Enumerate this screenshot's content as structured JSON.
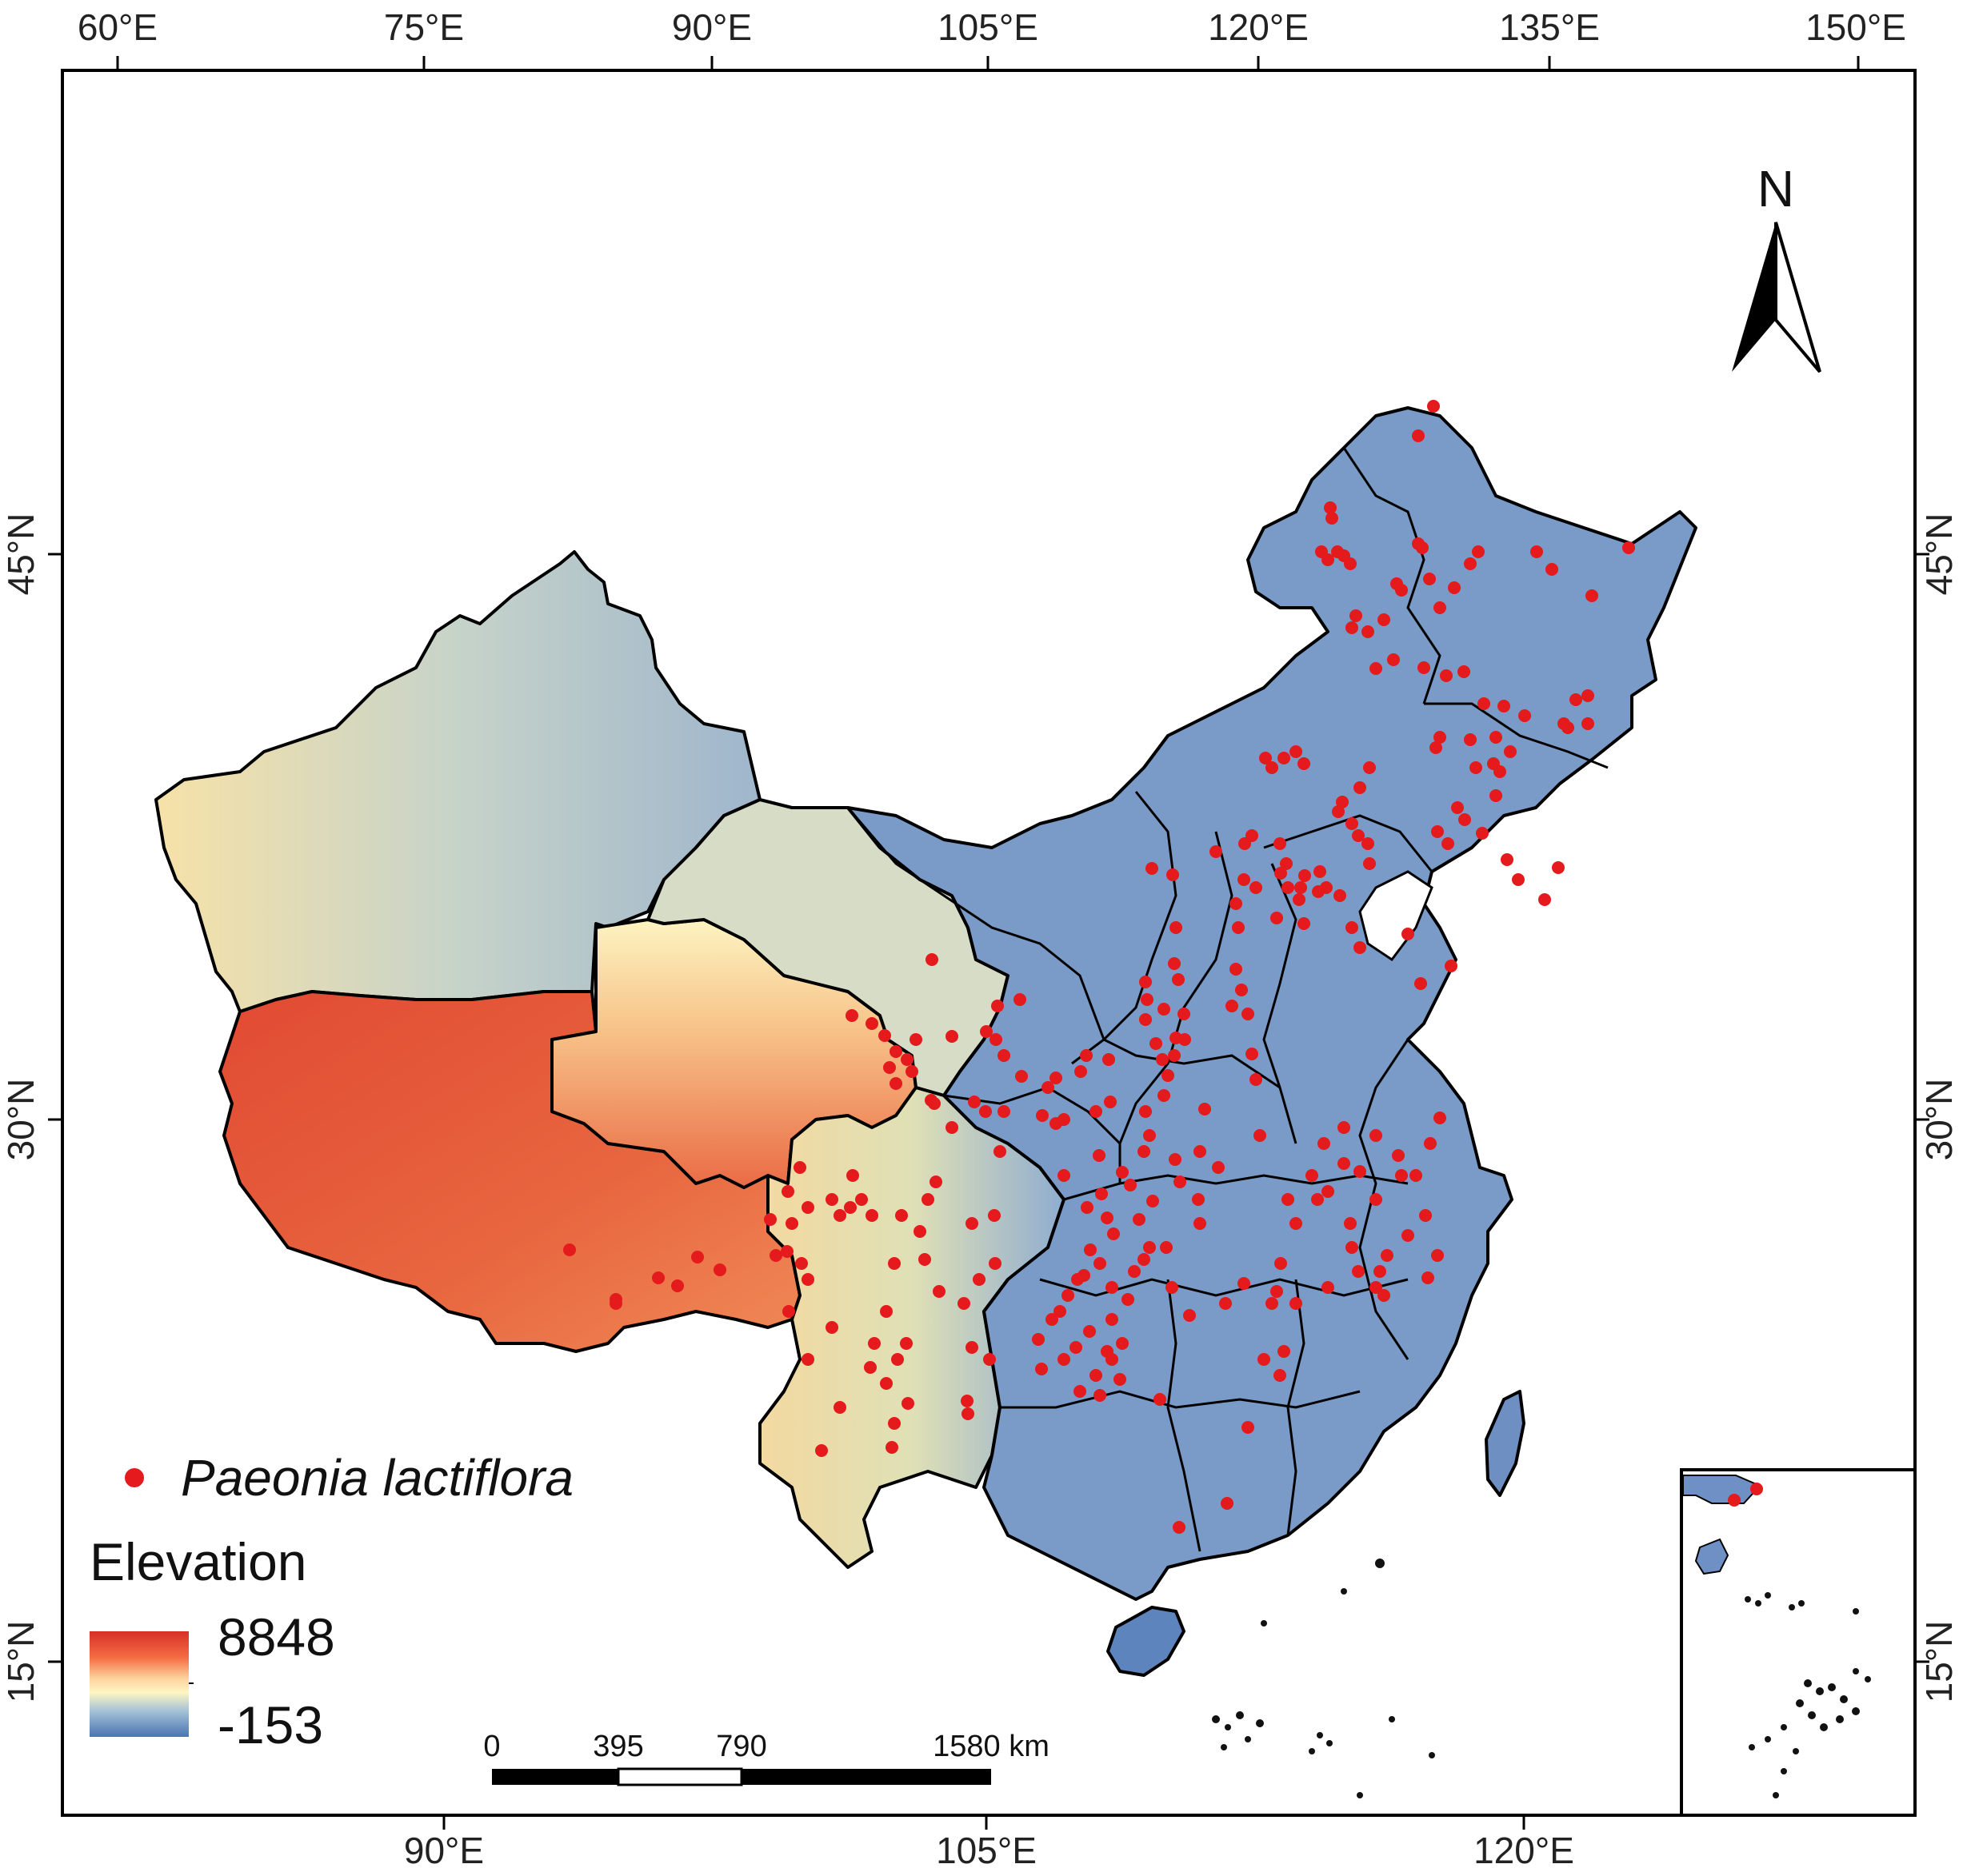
{
  "map": {
    "top_lon_ticks": [
      "60°E",
      "75°E",
      "90°E",
      "105°E",
      "120°E",
      "135°E",
      "150°E"
    ],
    "bottom_lon_ticks": [
      "90°E",
      "105°E",
      "120°E"
    ],
    "left_lat_ticks": [
      "45°N",
      "30°N",
      "15°N"
    ],
    "right_lat_ticks": [
      "45°N",
      "30°N",
      "15°N"
    ],
    "north_label": "N",
    "colors": {
      "elevation_high": "#d73027",
      "elevation_mid": "#fdf6c3",
      "elevation_low": "#4575b4",
      "occurrence_point": "#e41a1c",
      "boundary": "#000000"
    }
  },
  "legend": {
    "species": "Paeonia lactiflora",
    "elevation_title": "Elevation",
    "elevation_max": "8848",
    "elevation_min": "-153"
  },
  "scale_bar": {
    "labels": [
      "0",
      "395",
      "790",
      "1580 km"
    ]
  }
}
